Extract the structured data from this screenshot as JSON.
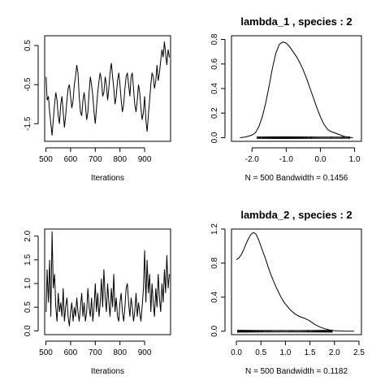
{
  "chart_data": [
    {
      "type": "line",
      "panel": "trace-lambda-1",
      "title": "",
      "xlabel": "Iterations",
      "ylabel": "",
      "xlim": [
        495,
        1005
      ],
      "ylim": [
        -1.95,
        0.75
      ],
      "xticks": [
        500,
        600,
        700,
        800,
        900
      ],
      "yticks": [
        -1.5,
        -0.5,
        0.5
      ],
      "xtick_labels": [
        "500",
        "600",
        "700",
        "800",
        "900"
      ],
      "ytick_labels": [
        "-1.5",
        "-0.5",
        "0.5"
      ],
      "x": [
        501,
        505,
        510,
        515,
        520,
        525,
        530,
        535,
        540,
        545,
        550,
        555,
        560,
        565,
        570,
        575,
        580,
        585,
        590,
        595,
        600,
        605,
        610,
        615,
        620,
        625,
        630,
        635,
        640,
        645,
        650,
        655,
        660,
        665,
        670,
        675,
        680,
        685,
        690,
        695,
        700,
        705,
        710,
        715,
        720,
        725,
        730,
        735,
        740,
        745,
        750,
        755,
        760,
        765,
        770,
        775,
        780,
        785,
        790,
        795,
        800,
        805,
        810,
        815,
        820,
        825,
        830,
        835,
        840,
        845,
        850,
        855,
        860,
        865,
        870,
        875,
        880,
        885,
        890,
        895,
        900,
        905,
        910,
        915,
        920,
        925,
        930,
        935,
        940,
        945,
        950,
        955,
        960,
        965,
        970,
        975,
        980,
        985,
        990,
        995,
        1000
      ],
      "y": [
        -0.3,
        -0.9,
        -0.8,
        -1.2,
        -1.5,
        -1.8,
        -1.4,
        -1.0,
        -0.7,
        -0.9,
        -1.3,
        -1.5,
        -1.0,
        -0.8,
        -1.2,
        -1.6,
        -1.3,
        -0.9,
        -0.6,
        -0.5,
        -0.8,
        -1.1,
        -0.9,
        -0.5,
        -0.3,
        0.0,
        -0.2,
        -0.8,
        -1.2,
        -1.3,
        -0.9,
        -0.7,
        -1.0,
        -1.4,
        -1.2,
        -0.7,
        -0.3,
        -0.5,
        -0.8,
        -1.2,
        -1.5,
        -1.1,
        -0.7,
        -0.4,
        -0.2,
        -0.4,
        -0.8,
        -0.7,
        -0.3,
        -0.5,
        -0.9,
        -0.6,
        -0.2,
        0.05,
        -0.3,
        -0.6,
        -1.0,
        -0.8,
        -0.4,
        -0.2,
        -0.5,
        -0.9,
        -1.2,
        -1.0,
        -0.6,
        -0.3,
        -0.2,
        -0.5,
        -0.8,
        -0.3,
        -0.2,
        -0.6,
        -1.0,
        -1.2,
        -0.9,
        -0.5,
        -0.7,
        -1.1,
        -1.4,
        -1.2,
        -0.8,
        -1.4,
        -1.7,
        -1.3,
        -0.9,
        -0.5,
        -0.2,
        -0.3,
        -0.6,
        -0.4,
        0.0,
        -0.4,
        -0.2,
        0.1,
        0.4,
        0.2,
        0.6,
        0.3,
        0.0,
        0.4,
        0.2
      ]
    },
    {
      "type": "line",
      "panel": "density-lambda-1",
      "title": "lambda_1 , species :  2",
      "xlabel": "N = 500   Bandwidth = 0.1456",
      "ylabel": "",
      "xlim": [
        -2.6,
        1.2
      ],
      "ylim": [
        -0.03,
        0.83
      ],
      "xticks": [
        -2.0,
        -1.0,
        0.0,
        1.0
      ],
      "yticks": [
        0.0,
        0.2,
        0.4,
        0.6,
        0.8
      ],
      "xtick_labels": [
        "-2.0",
        "-1.0",
        "0.0",
        "1.0"
      ],
      "ytick_labels": [
        "0.0",
        "0.2",
        "0.4",
        "0.6",
        "0.8"
      ],
      "x": [
        -2.35,
        -2.2,
        -2.0,
        -1.9,
        -1.8,
        -1.7,
        -1.6,
        -1.5,
        -1.4,
        -1.3,
        -1.2,
        -1.1,
        -1.0,
        -0.9,
        -0.8,
        -0.7,
        -0.6,
        -0.5,
        -0.4,
        -0.3,
        -0.2,
        -0.1,
        0.0,
        0.1,
        0.2,
        0.3,
        0.4,
        0.5,
        0.6,
        0.7,
        0.8,
        0.95
      ],
      "y": [
        0.0,
        0.005,
        0.02,
        0.04,
        0.09,
        0.17,
        0.28,
        0.42,
        0.57,
        0.69,
        0.76,
        0.78,
        0.77,
        0.74,
        0.7,
        0.66,
        0.61,
        0.55,
        0.48,
        0.4,
        0.32,
        0.24,
        0.17,
        0.11,
        0.07,
        0.05,
        0.04,
        0.03,
        0.02,
        0.01,
        0.004,
        0.0
      ],
      "rug_range": [
        -2.05,
        0.85
      ],
      "rug_count": 500
    },
    {
      "type": "line",
      "panel": "trace-lambda-2",
      "title": "",
      "xlabel": "Iterations",
      "ylabel": "",
      "xlim": [
        495,
        1005
      ],
      "ylim": [
        -0.08,
        2.15
      ],
      "xticks": [
        500,
        600,
        700,
        800,
        900
      ],
      "yticks": [
        0.0,
        0.5,
        1.0,
        1.5,
        2.0
      ],
      "xtick_labels": [
        "500",
        "600",
        "700",
        "800",
        "900"
      ],
      "ytick_labels": [
        "0.0",
        "0.5",
        "1.0",
        "1.5",
        "2.0"
      ],
      "x": [
        501,
        505,
        510,
        515,
        520,
        525,
        530,
        535,
        540,
        545,
        550,
        555,
        560,
        565,
        570,
        575,
        580,
        585,
        590,
        595,
        600,
        605,
        610,
        615,
        620,
        625,
        630,
        635,
        640,
        645,
        650,
        655,
        660,
        665,
        670,
        675,
        680,
        685,
        690,
        695,
        700,
        705,
        710,
        715,
        720,
        725,
        730,
        735,
        740,
        745,
        750,
        755,
        760,
        765,
        770,
        775,
        780,
        785,
        790,
        795,
        800,
        805,
        810,
        815,
        820,
        825,
        830,
        835,
        840,
        845,
        850,
        855,
        860,
        865,
        870,
        875,
        880,
        885,
        890,
        895,
        900,
        905,
        910,
        915,
        920,
        925,
        930,
        935,
        940,
        945,
        950,
        955,
        960,
        965,
        970,
        975,
        980,
        985,
        990,
        995,
        1000
      ],
      "y": [
        0.4,
        1.3,
        0.6,
        1.5,
        0.3,
        2.1,
        0.9,
        1.2,
        0.5,
        0.2,
        0.8,
        0.4,
        0.6,
        0.3,
        0.9,
        0.2,
        0.5,
        0.7,
        0.3,
        0.1,
        0.4,
        0.6,
        0.2,
        0.5,
        0.3,
        0.7,
        0.4,
        0.2,
        0.5,
        0.8,
        0.3,
        0.6,
        0.2,
        0.4,
        0.9,
        0.5,
        0.3,
        0.7,
        0.2,
        0.5,
        1.0,
        0.4,
        0.8,
        0.3,
        0.6,
        1.1,
        0.5,
        1.3,
        0.7,
        0.4,
        1.0,
        0.6,
        0.3,
        0.9,
        0.5,
        1.2,
        0.4,
        0.7,
        0.3,
        0.2,
        0.6,
        0.8,
        0.4,
        0.2,
        0.5,
        0.9,
        1.0,
        0.6,
        0.3,
        0.7,
        0.5,
        0.2,
        0.4,
        0.8,
        0.3,
        0.6,
        0.4,
        0.2,
        0.5,
        0.9,
        1.7,
        0.6,
        1.5,
        0.8,
        1.2,
        0.4,
        1.0,
        0.6,
        0.3,
        0.9,
        0.5,
        1.2,
        0.7,
        0.4,
        1.0,
        0.6,
        1.3,
        0.8,
        1.6,
        0.9,
        1.2
      ]
    },
    {
      "type": "line",
      "panel": "density-lambda-2",
      "title": "lambda_2 , species :  2",
      "xlabel": "N = 500   Bandwidth = 0.1182",
      "ylabel": "",
      "xlim": [
        -0.1,
        2.55
      ],
      "ylim": [
        -0.04,
        1.2
      ],
      "xticks": [
        0.0,
        0.5,
        1.0,
        1.5,
        2.0,
        2.5
      ],
      "yticks": [
        0.0,
        0.4,
        0.8,
        1.2
      ],
      "xtick_labels": [
        "0.0",
        "0.5",
        "1.0",
        "1.5",
        "2.0",
        "2.5"
      ],
      "ytick_labels": [
        "0.0",
        "0.4",
        "0.8",
        "1.2"
      ],
      "x": [
        0.0,
        0.05,
        0.1,
        0.15,
        0.2,
        0.25,
        0.3,
        0.35,
        0.4,
        0.45,
        0.5,
        0.55,
        0.6,
        0.65,
        0.7,
        0.75,
        0.8,
        0.85,
        0.9,
        0.95,
        1.0,
        1.1,
        1.2,
        1.3,
        1.4,
        1.5,
        1.6,
        1.7,
        1.8,
        1.9,
        2.0,
        2.1,
        2.2,
        2.3,
        2.4
      ],
      "y": [
        0.84,
        0.86,
        0.9,
        0.96,
        1.03,
        1.09,
        1.14,
        1.16,
        1.14,
        1.08,
        1.0,
        0.92,
        0.84,
        0.75,
        0.67,
        0.6,
        0.53,
        0.47,
        0.41,
        0.36,
        0.32,
        0.25,
        0.2,
        0.17,
        0.15,
        0.12,
        0.08,
        0.05,
        0.03,
        0.015,
        0.007,
        0.003,
        0.001,
        0.0,
        0.0
      ],
      "rug_range": [
        0.0,
        1.95
      ],
      "rug_count": 500
    }
  ]
}
